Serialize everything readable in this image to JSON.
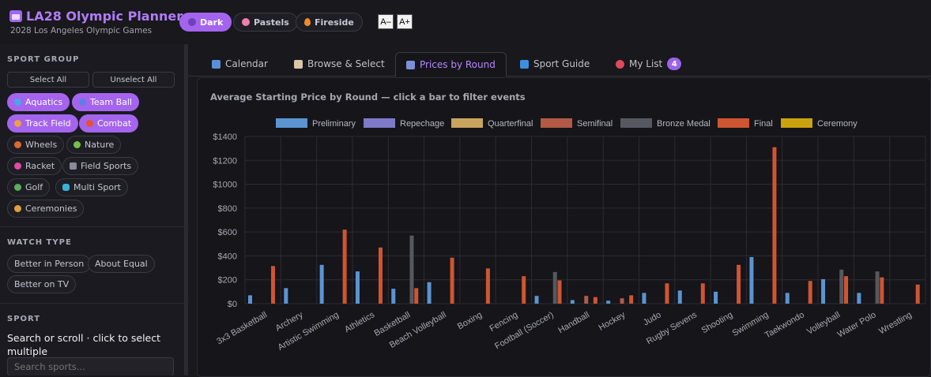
{
  "header": {
    "title": "LA28 Olympic Planner",
    "subtitle": "2028 Los Angeles Olympic Games",
    "themes": [
      {
        "label": "Dark",
        "color": "#6b42b8",
        "active": true
      },
      {
        "label": "Pastels",
        "color": "#ef7fae",
        "active": false
      },
      {
        "label": "Fireside",
        "color": "#f08a2c",
        "active": false
      }
    ],
    "font_smaller": "A–",
    "font_larger": "A+"
  },
  "sidebar": {
    "sport_group_heading": "SPORT GROUP",
    "select_all": "Select All",
    "unselect_all": "Unselect All",
    "groups": [
      {
        "label": "Aquatics",
        "icon": "wave-icon",
        "color": "#4aa6e8",
        "on": true
      },
      {
        "label": "Team Ball",
        "icon": "ball-icon",
        "color": "#5d7de8",
        "on": true
      },
      {
        "label": "Track Field",
        "icon": "runner-icon",
        "color": "#f0a040",
        "on": true
      },
      {
        "label": "Combat",
        "icon": "target-icon",
        "color": "#e8502e",
        "on": true
      },
      {
        "label": "Wheels",
        "icon": "bike-icon",
        "color": "#d86a30",
        "on": false
      },
      {
        "label": "Nature",
        "icon": "leaf-icon",
        "color": "#74c04a",
        "on": false
      },
      {
        "label": "Racket",
        "icon": "racket-icon",
        "color": "#e04aa0",
        "on": false
      },
      {
        "label": "Field Sports",
        "icon": "stadium-icon",
        "color": "#8a8a9a",
        "on": false
      },
      {
        "label": "Golf",
        "icon": "golf-icon",
        "color": "#58b05a",
        "on": false
      },
      {
        "label": "Multi Sport",
        "icon": "goggles-icon",
        "color": "#3ab0d8",
        "on": false
      },
      {
        "label": "Ceremonies",
        "icon": "people-icon",
        "color": "#e0a040",
        "on": false
      }
    ],
    "watch_type_heading": "WATCH TYPE",
    "watch_types": [
      "Better in Person",
      "About Equal",
      "Better on TV"
    ],
    "sport_heading": "SPORT",
    "sport_hint": "Search or scroll · click to select multiple",
    "search_placeholder": "Search sports..."
  },
  "tabs": [
    {
      "label": "Calendar",
      "icon": "calendar-icon",
      "color": "#5b8fd9",
      "active": false
    },
    {
      "label": "Browse & Select",
      "icon": "clipboard-icon",
      "color": "#d8c8a8",
      "active": false
    },
    {
      "label": "Prices by Round",
      "icon": "bar-chart-icon",
      "color": "#7c8fd8",
      "active": true
    },
    {
      "label": "Sport Guide",
      "icon": "info-icon",
      "color": "#3d8ee0",
      "active": false
    },
    {
      "label": "My List",
      "icon": "pin-icon",
      "color": "#e04a5a",
      "active": false,
      "badge": "4"
    }
  ],
  "chart_data": {
    "type": "bar",
    "title": "Average Starting Price by Round — click a bar to filter events",
    "ylim": [
      0,
      1400
    ],
    "yticks": [
      "$0",
      "$200",
      "$400",
      "$600",
      "$800",
      "$1000",
      "$1200",
      "$1400"
    ],
    "categories": [
      "3x3 Basketball",
      "Archery",
      "Artistic Swimming",
      "Athletics",
      "Basketball",
      "Beach Volleyball",
      "Boxing",
      "Fencing",
      "Football (Soccer)",
      "Handball",
      "Hockey",
      "Judo",
      "Rugby Sevens",
      "Shooting",
      "Swimming",
      "Taekwondo",
      "Volleyball",
      "Water Polo",
      "Wrestling"
    ],
    "series": [
      {
        "name": "Preliminary",
        "color": "#5b94d1",
        "values": [
          70,
          130,
          325,
          270,
          125,
          180,
          0,
          0,
          65,
          30,
          25,
          90,
          110,
          100,
          390,
          90,
          205,
          90,
          0
        ]
      },
      {
        "name": "Repechage",
        "color": "#7e79c9",
        "values": [
          0,
          0,
          0,
          0,
          0,
          0,
          0,
          0,
          0,
          0,
          0,
          0,
          0,
          0,
          0,
          0,
          0,
          0,
          0
        ]
      },
      {
        "name": "Quarterfinal",
        "color": "#c9a45e",
        "values": [
          0,
          0,
          0,
          0,
          0,
          0,
          0,
          0,
          0,
          0,
          0,
          0,
          0,
          0,
          0,
          0,
          0,
          0,
          0
        ]
      },
      {
        "name": "Semifinal",
        "color": "#b35a47",
        "values": [
          0,
          0,
          0,
          0,
          0,
          0,
          0,
          0,
          0,
          65,
          45,
          0,
          0,
          0,
          0,
          0,
          0,
          0,
          0
        ]
      },
      {
        "name": "Bronze Medal",
        "color": "#55595f",
        "values": [
          0,
          0,
          0,
          0,
          570,
          0,
          0,
          0,
          265,
          0,
          0,
          0,
          0,
          0,
          0,
          0,
          285,
          270,
          0
        ]
      },
      {
        "name": "Final",
        "color": "#cf5531",
        "values": [
          315,
          0,
          620,
          470,
          130,
          385,
          295,
          230,
          195,
          55,
          70,
          170,
          170,
          325,
          1310,
          190,
          230,
          220,
          160
        ]
      },
      {
        "name": "Ceremony",
        "color": "#c9a20e",
        "values": [
          0,
          0,
          0,
          0,
          0,
          0,
          0,
          0,
          0,
          0,
          0,
          0,
          0,
          0,
          0,
          0,
          0,
          0,
          0
        ]
      }
    ]
  }
}
